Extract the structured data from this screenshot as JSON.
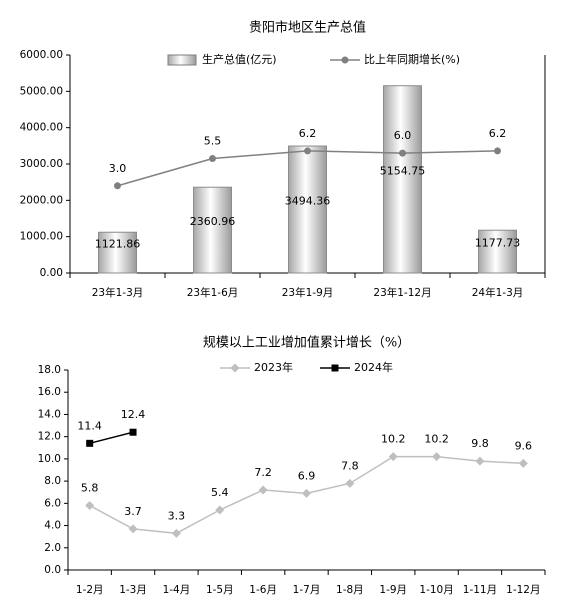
{
  "chart_data": [
    {
      "type": "bar",
      "title": "贵阳市地区生产总值",
      "categories": [
        "23年1-3月",
        "23年1-6月",
        "23年1-9月",
        "23年1-12月",
        "24年1-3月"
      ],
      "series": [
        {
          "name": "生产总值(亿元)",
          "type": "bar",
          "color": "#d9d9d9",
          "values": [
            1121.86,
            2360.96,
            3494.36,
            5154.75,
            1177.73
          ]
        },
        {
          "name": "比上年同期增长(%)",
          "type": "line",
          "axis": "y2",
          "color": "#808080",
          "values": [
            3.0,
            5.5,
            6.2,
            6.0,
            6.2
          ],
          "value_labels": [
            "3.0",
            "5.5",
            "6.2",
            "6.0",
            "6.2"
          ]
        }
      ],
      "ylim": [
        0,
        6000
      ],
      "yticks": [
        {
          "value": 0,
          "label": "0.00"
        },
        {
          "value": 1000,
          "label": "1000.00"
        },
        {
          "value": 2000,
          "label": "2000.00"
        },
        {
          "value": 3000,
          "label": "3000.00"
        },
        {
          "value": 4000,
          "label": "4000.00"
        },
        {
          "value": 5000,
          "label": "5000.00"
        },
        {
          "value": 6000,
          "label": "6000.00"
        }
      ],
      "y2lim": [
        -5,
        15
      ],
      "legend": "top"
    },
    {
      "type": "line",
      "title": "规模以上工业增加值累计增长（%）",
      "categories": [
        "1-2月",
        "1-3月",
        "1-4月",
        "1-5月",
        "1-6月",
        "1-7月",
        "1-8月",
        "1-9月",
        "1-10月",
        "1-11月",
        "1-12月"
      ],
      "series": [
        {
          "name": "2023年",
          "color": "#bfbfbf",
          "marker": "diamond",
          "values": [
            5.8,
            3.7,
            3.3,
            5.4,
            7.2,
            6.9,
            7.8,
            10.2,
            10.2,
            9.8,
            9.6
          ]
        },
        {
          "name": "2024年",
          "color": "#000000",
          "marker": "square",
          "values": [
            11.4,
            12.4,
            null,
            null,
            null,
            null,
            null,
            null,
            null,
            null,
            null
          ]
        }
      ],
      "ylim": [
        0,
        18
      ],
      "yticks": [
        {
          "value": 0,
          "label": "0.0"
        },
        {
          "value": 2,
          "label": "2.0"
        },
        {
          "value": 4,
          "label": "4.0"
        },
        {
          "value": 6,
          "label": "6.0"
        },
        {
          "value": 8,
          "label": "8.0"
        },
        {
          "value": 10,
          "label": "10.0"
        },
        {
          "value": 12,
          "label": "12.0"
        },
        {
          "value": 14,
          "label": "14.0"
        },
        {
          "value": 16,
          "label": "16.0"
        },
        {
          "value": 18,
          "label": "18.0"
        }
      ],
      "legend": "top"
    }
  ]
}
